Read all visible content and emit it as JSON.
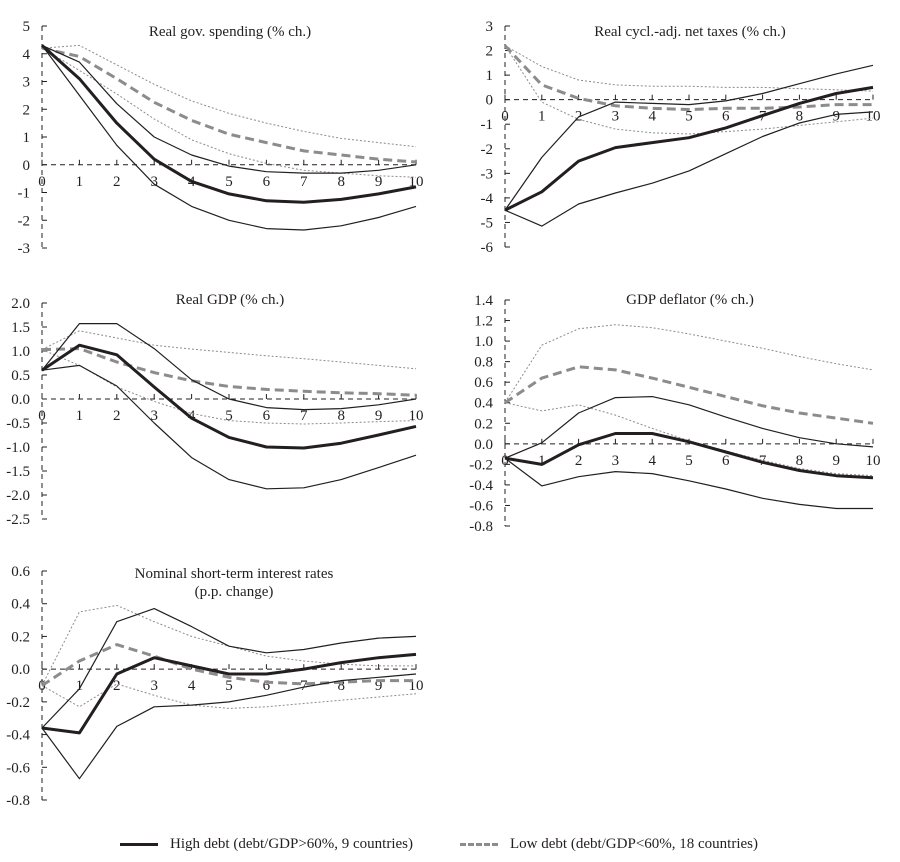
{
  "figure": {
    "legend": [
      {
        "key": "high",
        "label": "High debt (debt/GDP>60%, 9 countries)",
        "color": "#231f20",
        "style": "solid"
      },
      {
        "key": "low",
        "label": "Low debt (debt/GDP<60%, 18 countries)",
        "color": "#8c8c8c",
        "style": "dashed"
      }
    ]
  },
  "chart_data": [
    {
      "type": "line",
      "title": "Real gov. spending (% ch.)",
      "xlabel": "",
      "ylabel": "",
      "x": [
        0,
        1,
        2,
        3,
        4,
        5,
        6,
        7,
        8,
        9,
        10
      ],
      "ylim": [
        -3,
        5
      ],
      "yticks": [
        5,
        4,
        3,
        2,
        1,
        0,
        -1,
        -2,
        -3
      ],
      "ytick_labels": [
        "5",
        "4",
        "3",
        "2",
        "1",
        "0",
        "-1",
        "-2",
        "-3"
      ],
      "series": [
        {
          "name": "High debt",
          "role": "central",
          "values": [
            4.3,
            3.1,
            1.5,
            0.2,
            -0.6,
            -1.05,
            -1.3,
            -1.35,
            -1.25,
            -1.05,
            -0.8
          ]
        },
        {
          "name": "High debt upper band",
          "role": "upper",
          "group": "high",
          "values": [
            4.3,
            3.7,
            2.2,
            1.0,
            0.35,
            -0.05,
            -0.25,
            -0.3,
            -0.3,
            -0.2,
            0.0
          ]
        },
        {
          "name": "High debt lower band",
          "role": "lower",
          "group": "high",
          "values": [
            4.3,
            2.5,
            0.7,
            -0.7,
            -1.5,
            -2.0,
            -2.3,
            -2.35,
            -2.2,
            -1.9,
            -1.5
          ]
        },
        {
          "name": "Low debt",
          "role": "central",
          "group": "low",
          "values": [
            4.2,
            3.9,
            3.1,
            2.25,
            1.6,
            1.1,
            0.8,
            0.5,
            0.35,
            0.2,
            0.1
          ]
        },
        {
          "name": "Low debt upper band",
          "role": "upper",
          "group": "low",
          "values": [
            4.2,
            4.3,
            3.6,
            2.9,
            2.3,
            1.85,
            1.5,
            1.2,
            0.95,
            0.8,
            0.65
          ]
        },
        {
          "name": "Low debt lower band",
          "role": "lower",
          "group": "low",
          "values": [
            4.2,
            3.4,
            2.55,
            1.65,
            0.9,
            0.4,
            0.05,
            -0.2,
            -0.3,
            -0.4,
            -0.45
          ]
        }
      ]
    },
    {
      "type": "line",
      "title": "Real cycl.-adj. net taxes (% ch.)",
      "xlabel": "",
      "ylabel": "",
      "x": [
        0,
        1,
        2,
        3,
        4,
        5,
        6,
        7,
        8,
        9,
        10
      ],
      "ylim": [
        -6,
        3
      ],
      "yticks": [
        3,
        2,
        1,
        0,
        -1,
        -2,
        -3,
        -4,
        -5,
        -6
      ],
      "ytick_labels": [
        "3",
        "2",
        "1",
        "0",
        "-1",
        "-2",
        "-3",
        "-4",
        "-5",
        "-6"
      ],
      "series": [
        {
          "name": "High debt",
          "role": "central",
          "group": "high",
          "values": [
            -4.5,
            -3.75,
            -2.5,
            -1.95,
            -1.75,
            -1.55,
            -1.15,
            -0.65,
            -0.15,
            0.25,
            0.5
          ]
        },
        {
          "name": "High debt upper band",
          "role": "upper",
          "group": "high",
          "values": [
            -4.5,
            -2.35,
            -0.7,
            -0.1,
            -0.15,
            -0.2,
            -0.05,
            0.25,
            0.65,
            1.05,
            1.4
          ]
        },
        {
          "name": "High debt lower band",
          "role": "lower",
          "group": "high",
          "values": [
            -4.5,
            -5.15,
            -4.25,
            -3.8,
            -3.4,
            -2.9,
            -2.2,
            -1.5,
            -0.95,
            -0.6,
            -0.5
          ]
        },
        {
          "name": "Low debt",
          "role": "central",
          "group": "low",
          "values": [
            2.2,
            0.6,
            0.05,
            -0.25,
            -0.35,
            -0.4,
            -0.35,
            -0.35,
            -0.3,
            -0.2,
            -0.2
          ]
        },
        {
          "name": "Low debt upper band",
          "role": "upper",
          "group": "low",
          "values": [
            2.2,
            1.35,
            0.8,
            0.6,
            0.55,
            0.55,
            0.5,
            0.5,
            0.45,
            0.4,
            0.35
          ]
        },
        {
          "name": "Low debt lower band",
          "role": "lower",
          "group": "low",
          "values": [
            2.2,
            -0.1,
            -0.8,
            -1.2,
            -1.35,
            -1.4,
            -1.3,
            -1.2,
            -1.05,
            -0.9,
            -0.75
          ]
        }
      ]
    },
    {
      "type": "line",
      "title": "Real GDP (% ch.)",
      "xlabel": "",
      "ylabel": "",
      "x": [
        0,
        1,
        2,
        3,
        4,
        5,
        6,
        7,
        8,
        9,
        10
      ],
      "ylim": [
        -2.5,
        2.0
      ],
      "yticks": [
        2.0,
        1.5,
        1.0,
        0.5,
        0.0,
        -0.5,
        -1.0,
        -1.5,
        -2.0,
        -2.5
      ],
      "ytick_labels": [
        "2.0",
        "1.5",
        "1.0",
        "0.5",
        "0.0",
        "-0.5",
        "-1.0",
        "-1.5",
        "-2.0",
        "-2.5"
      ],
      "series": [
        {
          "name": "High debt",
          "role": "central",
          "group": "high",
          "values": [
            0.6,
            1.12,
            0.92,
            0.25,
            -0.4,
            -0.8,
            -1.0,
            -1.02,
            -0.92,
            -0.75,
            -0.57
          ]
        },
        {
          "name": "High debt upper band",
          "role": "upper",
          "group": "high",
          "values": [
            0.6,
            1.57,
            1.57,
            1.05,
            0.4,
            0.0,
            -0.18,
            -0.22,
            -0.2,
            -0.12,
            0.0
          ]
        },
        {
          "name": "High debt lower band",
          "role": "lower",
          "group": "high",
          "values": [
            0.6,
            0.7,
            0.27,
            -0.5,
            -1.22,
            -1.68,
            -1.87,
            -1.85,
            -1.68,
            -1.43,
            -1.17
          ]
        },
        {
          "name": "Low debt",
          "role": "central",
          "group": "low",
          "values": [
            1.03,
            1.05,
            0.77,
            0.55,
            0.38,
            0.26,
            0.2,
            0.16,
            0.13,
            0.11,
            0.08
          ]
        },
        {
          "name": "Low debt upper band",
          "role": "upper",
          "group": "low",
          "values": [
            1.03,
            1.42,
            1.27,
            1.12,
            1.04,
            0.97,
            0.9,
            0.84,
            0.77,
            0.7,
            0.63
          ]
        },
        {
          "name": "Low debt lower band",
          "role": "lower",
          "group": "low",
          "values": [
            1.03,
            0.7,
            0.25,
            -0.05,
            -0.3,
            -0.45,
            -0.5,
            -0.52,
            -0.5,
            -0.47,
            -0.45
          ]
        }
      ]
    },
    {
      "type": "line",
      "title": "GDP deflator (% ch.)",
      "xlabel": "",
      "ylabel": "",
      "x": [
        0,
        1,
        2,
        3,
        4,
        5,
        6,
        7,
        8,
        9,
        10
      ],
      "ylim": [
        -0.8,
        1.4
      ],
      "yticks": [
        1.4,
        1.2,
        1.0,
        0.8,
        0.6,
        0.4,
        0.2,
        0.0,
        -0.2,
        -0.4,
        -0.6,
        -0.8
      ],
      "ytick_labels": [
        "1.4",
        "1.2",
        "1.0",
        "0.8",
        "0.6",
        "0.4",
        "0.2",
        "0.0",
        "-0.2",
        "-0.4",
        "-0.6",
        "-0.8"
      ],
      "series": [
        {
          "name": "High debt",
          "role": "central",
          "group": "high",
          "values": [
            -0.14,
            -0.2,
            -0.01,
            0.1,
            0.1,
            0.02,
            -0.08,
            -0.18,
            -0.26,
            -0.31,
            -0.33
          ]
        },
        {
          "name": "High debt upper band",
          "role": "upper",
          "group": "high",
          "values": [
            -0.14,
            0.01,
            0.3,
            0.45,
            0.46,
            0.38,
            0.26,
            0.15,
            0.06,
            0.0,
            -0.03
          ]
        },
        {
          "name": "High debt lower band",
          "role": "lower",
          "group": "high",
          "values": [
            -0.14,
            -0.41,
            -0.32,
            -0.27,
            -0.29,
            -0.36,
            -0.44,
            -0.53,
            -0.59,
            -0.63,
            -0.63
          ]
        },
        {
          "name": "Low debt",
          "role": "central",
          "group": "low",
          "values": [
            0.4,
            0.64,
            0.75,
            0.72,
            0.64,
            0.55,
            0.46,
            0.37,
            0.3,
            0.25,
            0.2
          ]
        },
        {
          "name": "Low debt upper band",
          "role": "upper",
          "group": "low",
          "values": [
            0.4,
            0.96,
            1.12,
            1.16,
            1.13,
            1.07,
            1.0,
            0.93,
            0.85,
            0.78,
            0.72
          ]
        },
        {
          "name": "Low debt lower band",
          "role": "lower",
          "group": "low",
          "values": [
            0.4,
            0.32,
            0.38,
            0.28,
            0.15,
            0.03,
            -0.07,
            -0.16,
            -0.24,
            -0.29,
            -0.31
          ]
        }
      ]
    },
    {
      "type": "line",
      "title": "Nominal short-term interest rates",
      "subtitle": "(p.p. change)",
      "xlabel": "",
      "ylabel": "",
      "x": [
        0,
        1,
        2,
        3,
        4,
        5,
        6,
        7,
        8,
        9,
        10
      ],
      "ylim": [
        -0.8,
        0.6
      ],
      "yticks": [
        0.6,
        0.4,
        0.2,
        0.0,
        -0.2,
        -0.4,
        -0.6,
        -0.8
      ],
      "ytick_labels": [
        "0.6",
        "0.4",
        "0.2",
        "0.0",
        "-0.2",
        "-0.4",
        "-0.6",
        "-0.8"
      ],
      "series": [
        {
          "name": "High debt",
          "role": "central",
          "group": "high",
          "values": [
            -0.36,
            -0.39,
            -0.03,
            0.07,
            0.02,
            -0.03,
            -0.03,
            0.0,
            0.04,
            0.07,
            0.09
          ]
        },
        {
          "name": "High debt upper band",
          "role": "upper",
          "group": "high",
          "values": [
            -0.36,
            -0.12,
            0.29,
            0.37,
            0.26,
            0.14,
            0.1,
            0.12,
            0.16,
            0.19,
            0.2
          ]
        },
        {
          "name": "High debt lower band",
          "role": "lower",
          "group": "high",
          "values": [
            -0.36,
            -0.67,
            -0.35,
            -0.23,
            -0.22,
            -0.2,
            -0.16,
            -0.11,
            -0.07,
            -0.05,
            -0.03
          ]
        },
        {
          "name": "Low debt",
          "role": "central",
          "group": "low",
          "values": [
            -0.1,
            0.05,
            0.15,
            0.08,
            0.0,
            -0.05,
            -0.08,
            -0.09,
            -0.08,
            -0.07,
            -0.07
          ]
        },
        {
          "name": "Low debt upper band",
          "role": "upper",
          "group": "low",
          "values": [
            -0.1,
            0.35,
            0.39,
            0.29,
            0.2,
            0.14,
            0.08,
            0.05,
            0.03,
            0.02,
            0.02
          ]
        },
        {
          "name": "Low debt lower band",
          "role": "lower",
          "group": "low",
          "values": [
            -0.1,
            -0.23,
            -0.09,
            -0.16,
            -0.22,
            -0.24,
            -0.23,
            -0.21,
            -0.19,
            -0.17,
            -0.15
          ]
        }
      ]
    }
  ]
}
